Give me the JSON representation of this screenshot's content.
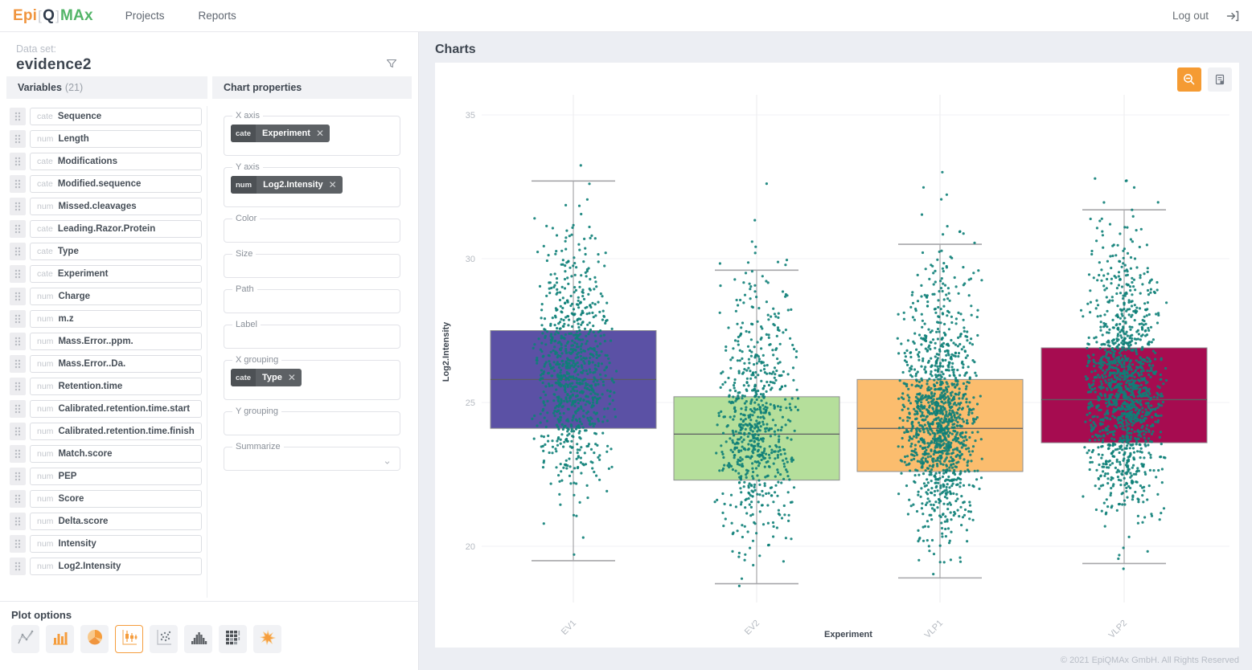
{
  "nav": {
    "logo": {
      "part1": "Epi",
      "part2": "Q",
      "part3": "MAx"
    },
    "links": [
      {
        "label": "Projects"
      },
      {
        "label": "Reports"
      }
    ],
    "logout_label": "Log out"
  },
  "sidebar": {
    "dataset_label": "Data set:",
    "dataset_name": "evidence2",
    "variables_title": "Variables",
    "variables_count": "(21)",
    "variables": [
      {
        "type": "cate",
        "name": "Sequence"
      },
      {
        "type": "num",
        "name": "Length"
      },
      {
        "type": "cate",
        "name": "Modifications"
      },
      {
        "type": "cate",
        "name": "Modified.sequence"
      },
      {
        "type": "num",
        "name": "Missed.cleavages"
      },
      {
        "type": "cate",
        "name": "Leading.Razor.Protein"
      },
      {
        "type": "cate",
        "name": "Type"
      },
      {
        "type": "cate",
        "name": "Experiment"
      },
      {
        "type": "num",
        "name": "Charge"
      },
      {
        "type": "num",
        "name": "m.z"
      },
      {
        "type": "num",
        "name": "Mass.Error..ppm."
      },
      {
        "type": "num",
        "name": "Mass.Error..Da."
      },
      {
        "type": "num",
        "name": "Retention.time"
      },
      {
        "type": "num",
        "name": "Calibrated.retention.time.start"
      },
      {
        "type": "num",
        "name": "Calibrated.retention.time.finish"
      },
      {
        "type": "num",
        "name": "Match.score"
      },
      {
        "type": "num",
        "name": "PEP"
      },
      {
        "type": "num",
        "name": "Score"
      },
      {
        "type": "num",
        "name": "Delta.score"
      },
      {
        "type": "num",
        "name": "Intensity"
      },
      {
        "type": "num",
        "name": "Log2.Intensity"
      }
    ],
    "chart_properties_title": "Chart properties",
    "fields": [
      {
        "label": "X axis",
        "chip": {
          "type": "cate",
          "name": "Experiment"
        }
      },
      {
        "label": "Y axis",
        "chip": {
          "type": "num",
          "name": "Log2.Intensity"
        }
      },
      {
        "label": "Color"
      },
      {
        "label": "Size"
      },
      {
        "label": "Path"
      },
      {
        "label": "Label"
      },
      {
        "label": "X grouping",
        "chip": {
          "type": "cate",
          "name": "Type"
        }
      },
      {
        "label": "Y grouping"
      },
      {
        "label": "Summarize",
        "dropdown": true
      }
    ],
    "plot_options_title": "Plot options",
    "plot_icons": [
      {
        "name": "line-chart",
        "selected": false
      },
      {
        "name": "bar-chart",
        "selected": false
      },
      {
        "name": "pie-chart",
        "selected": false
      },
      {
        "name": "box-plot",
        "selected": true
      },
      {
        "name": "scatter-plot",
        "selected": false
      },
      {
        "name": "histogram",
        "selected": false
      },
      {
        "name": "heatmap",
        "selected": false
      },
      {
        "name": "starburst",
        "selected": false
      }
    ]
  },
  "main": {
    "title": "Charts",
    "footer": "© 2021 EpiQMAx GmbH. All Rights Reserved"
  },
  "chart_data": {
    "type": "boxplot-jitter",
    "xlabel": "Experiment",
    "ylabel": "Log2.Intensity",
    "categories": [
      "EV1",
      "EV2",
      "VLP1",
      "VLP2"
    ],
    "yticks": [
      20,
      25,
      30,
      35
    ],
    "ylim": [
      18.2,
      36
    ],
    "grid": true,
    "point_color": "#0e7f78",
    "series": [
      {
        "name": "EV1",
        "color": "#5b51a5",
        "q1": 24.1,
        "median": 25.8,
        "q3": 27.5,
        "whisker_low": 19.5,
        "whisker_high": 32.7,
        "points_min": 19.0,
        "points_max": 34.8,
        "n_points": 850
      },
      {
        "name": "EV2",
        "color": "#b5df9b",
        "q1": 22.3,
        "median": 23.9,
        "q3": 25.2,
        "whisker_low": 18.7,
        "whisker_high": 29.6,
        "points_min": 18.6,
        "points_max": 34.3,
        "n_points": 700
      },
      {
        "name": "VLP1",
        "color": "#fbbd6e",
        "q1": 22.6,
        "median": 24.1,
        "q3": 25.8,
        "whisker_low": 18.9,
        "whisker_high": 30.5,
        "points_min": 18.8,
        "points_max": 33.9,
        "n_points": 1250
      },
      {
        "name": "VLP2",
        "color": "#a60c50",
        "q1": 23.6,
        "median": 25.1,
        "q3": 26.9,
        "whisker_low": 19.4,
        "whisker_high": 31.7,
        "points_min": 19.2,
        "points_max": 34.6,
        "n_points": 1350
      }
    ]
  }
}
